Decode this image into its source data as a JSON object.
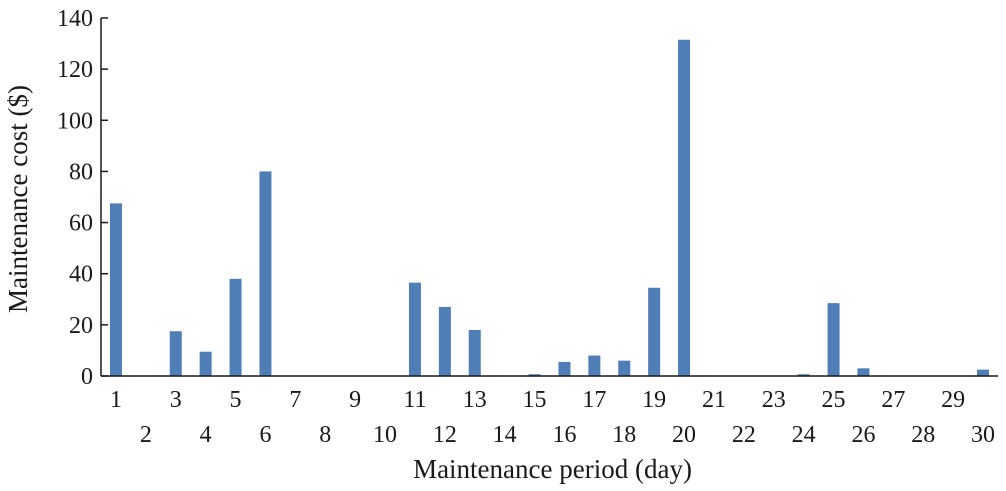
{
  "chart_data": {
    "type": "bar",
    "title": "",
    "xlabel": "Maintenance period (day)",
    "ylabel": "Maintenance cost ($)",
    "ylim": [
      0,
      140
    ],
    "yticks": [
      0,
      20,
      40,
      60,
      80,
      100,
      120,
      140
    ],
    "grid": false,
    "legend": "none",
    "bar_color": "#4f7db5",
    "categories": [
      "1",
      "2",
      "3",
      "4",
      "5",
      "6",
      "7",
      "8",
      "9",
      "10",
      "11",
      "12",
      "13",
      "14",
      "15",
      "16",
      "17",
      "18",
      "19",
      "20",
      "21",
      "22",
      "23",
      "24",
      "25",
      "26",
      "27",
      "28",
      "29",
      "30"
    ],
    "values": [
      67.5,
      0,
      17.5,
      9.5,
      38,
      80,
      0,
      0,
      0,
      0,
      36.5,
      27,
      18,
      0,
      0.7,
      5.5,
      8,
      6,
      34.5,
      131.5,
      0,
      0,
      0,
      0.7,
      28.5,
      3,
      0,
      0,
      0,
      2.5
    ]
  }
}
